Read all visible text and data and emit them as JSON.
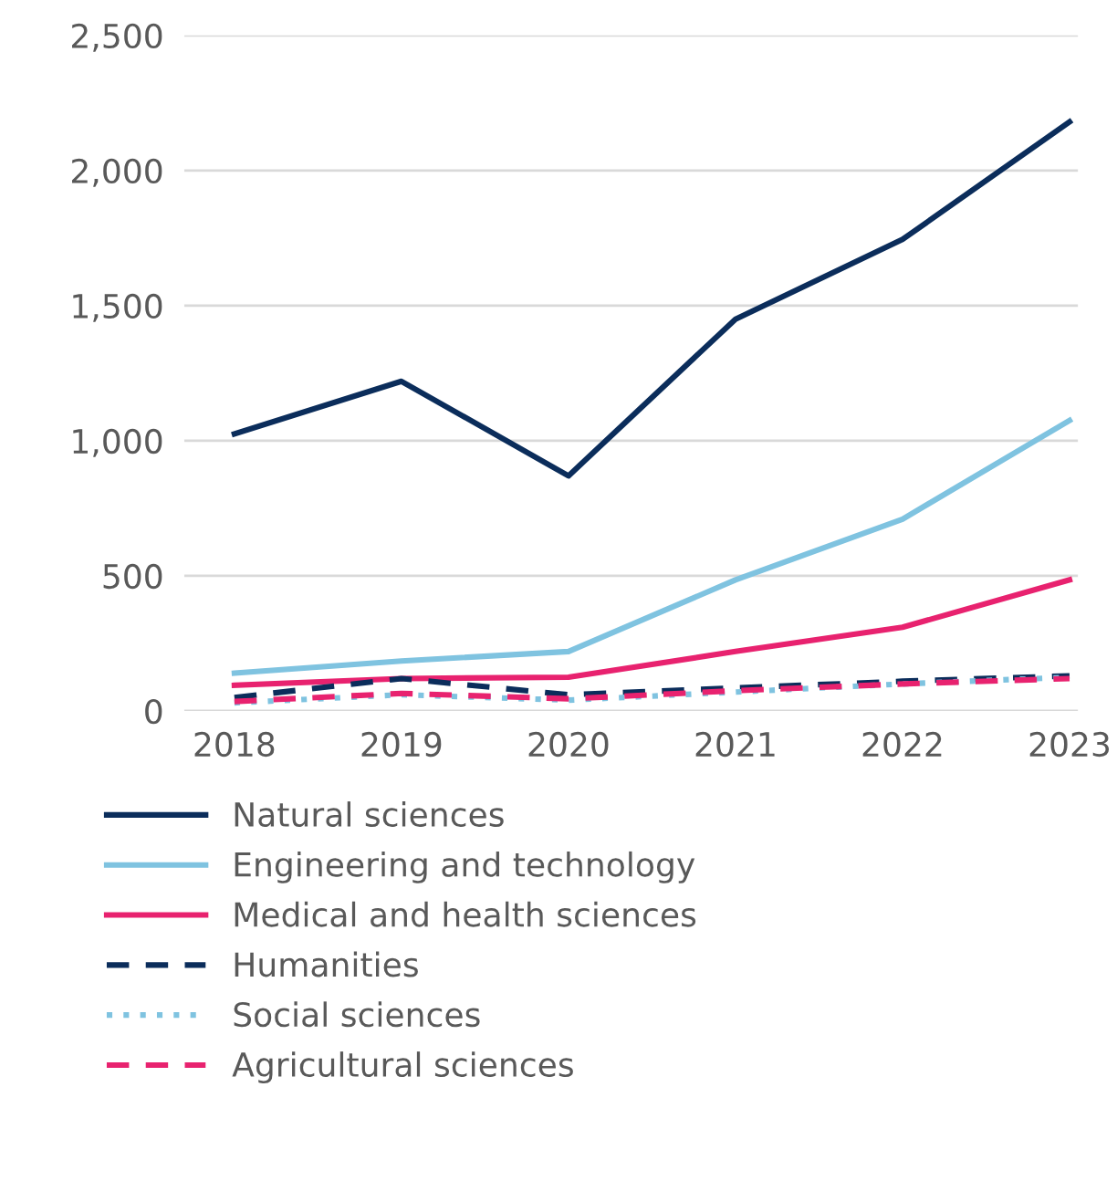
{
  "chart_data": {
    "type": "line",
    "categories": [
      "2018",
      "2019",
      "2020",
      "2021",
      "2022",
      "2023"
    ],
    "ylim": [
      0,
      2500
    ],
    "yticks": [
      0,
      {
        "value": 500,
        "label": "500"
      },
      {
        "value": 1000,
        "label": "1,000"
      },
      {
        "value": 1500,
        "label": "1,500"
      },
      {
        "value": 2000,
        "label": "2,000"
      },
      {
        "value": 2500,
        "label": "2,500"
      }
    ],
    "grid": "y",
    "legend": "bottom",
    "line_style": "solid",
    "series": [
      {
        "name": "Natural sciences",
        "color": "#0b2d5b",
        "values": [
          1025,
          1220,
          870,
          1450,
          1745,
          2180
        ]
      },
      {
        "name": "Engineering and technology",
        "color": "#7fc3e0",
        "values": [
          140,
          185,
          220,
          485,
          710,
          1075
        ]
      },
      {
        "name": "Medical and health sciences",
        "color": "#e8226f",
        "values": [
          95,
          120,
          125,
          220,
          310,
          485
        ]
      },
      {
        "name": "Humanities",
        "color": "#0b2d5b",
        "line_style": "dashed",
        "values": [
          50,
          120,
          60,
          85,
          110,
          130
        ]
      },
      {
        "name": "Social sciences",
        "color": "#7fc3e0",
        "line_style": "dotted",
        "values": [
          30,
          60,
          40,
          70,
          100,
          125
        ]
      },
      {
        "name": "Agricultural sciences",
        "color": "#e8226f",
        "line_style": "dashed",
        "values": [
          35,
          65,
          45,
          75,
          100,
          120
        ]
      }
    ]
  }
}
